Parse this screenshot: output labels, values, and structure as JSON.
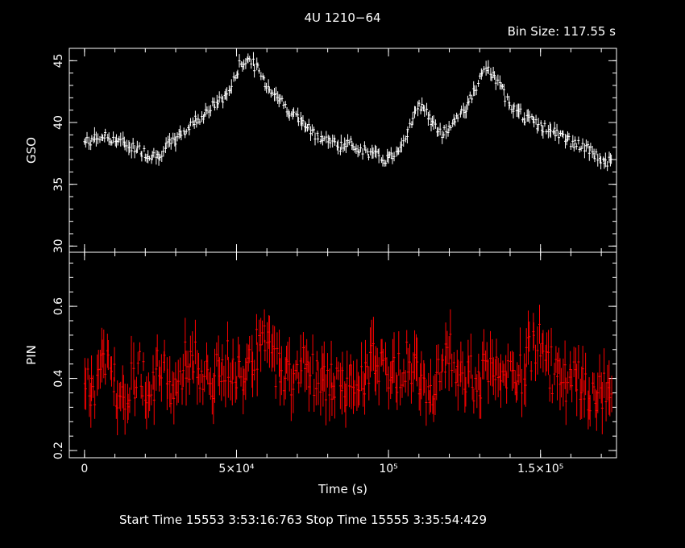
{
  "chart_data": {
    "type": "line",
    "title": "4U 1210−64",
    "subtitle": "Bin Size:  117.55  s",
    "xlabel": "Time (s)",
    "xlim": [
      -5000,
      175000
    ],
    "x_ticks": [
      {
        "value": 0,
        "label": "0"
      },
      {
        "value": 50000,
        "label": "5×10⁴"
      },
      {
        "value": 100000,
        "label": "10⁵"
      },
      {
        "value": 150000,
        "label": "1.5×10⁵"
      }
    ],
    "panels": [
      {
        "ylabel": "GSO",
        "ylim": [
          29.5,
          46
        ],
        "color": "#ffffff",
        "y_ticks": [
          {
            "value": 30,
            "label": "30"
          },
          {
            "value": 35,
            "label": "35"
          },
          {
            "value": 40,
            "label": "40"
          },
          {
            "value": 45,
            "label": "45"
          }
        ],
        "series": {
          "x": [
            0,
            3000,
            6000,
            9000,
            12000,
            15000,
            18000,
            21000,
            24000,
            27000,
            30000,
            33000,
            36000,
            39000,
            42000,
            45000,
            48000,
            51000,
            54000,
            57000,
            60000,
            63000,
            66000,
            69000,
            72000,
            75000,
            78000,
            81000,
            84000,
            87000,
            90000,
            93000,
            96000,
            99000,
            102000,
            105000,
            108000,
            111000,
            114000,
            117000,
            120000,
            123000,
            126000,
            129000,
            132000,
            135000,
            138000,
            141000,
            144000,
            147000,
            150000,
            153000,
            156000,
            159000,
            162000,
            165000,
            168000,
            171000
          ],
          "y": [
            38.4,
            38.6,
            38.9,
            38.7,
            38.4,
            38.1,
            37.8,
            37.4,
            37.3,
            38.0,
            38.6,
            39.3,
            40.1,
            40.6,
            41.3,
            41.8,
            42.7,
            44.6,
            45.2,
            44.3,
            43.0,
            42.3,
            41.3,
            40.6,
            39.9,
            39.2,
            38.8,
            38.5,
            38.1,
            38.3,
            38.0,
            37.6,
            37.3,
            37.0,
            37.4,
            38.6,
            40.4,
            41.6,
            40.1,
            39.1,
            39.6,
            40.6,
            41.4,
            42.9,
            44.4,
            43.6,
            42.3,
            41.3,
            40.6,
            40.1,
            39.7,
            39.4,
            39.0,
            38.6,
            38.2,
            37.9,
            37.4,
            36.8
          ]
        }
      },
      {
        "ylabel": "PIN",
        "ylim": [
          0.18,
          0.75
        ],
        "color": "#ff0000",
        "y_ticks": [
          {
            "value": 0.2,
            "label": "0.2"
          },
          {
            "value": 0.4,
            "label": "0.4"
          },
          {
            "value": 0.6,
            "label": "0.6"
          }
        ],
        "series": {
          "x": [
            0,
            3000,
            6000,
            9000,
            12000,
            15000,
            18000,
            21000,
            24000,
            27000,
            30000,
            33000,
            36000,
            39000,
            42000,
            45000,
            48000,
            51000,
            54000,
            57000,
            60000,
            63000,
            66000,
            69000,
            72000,
            75000,
            78000,
            81000,
            84000,
            87000,
            90000,
            93000,
            96000,
            99000,
            102000,
            105000,
            108000,
            111000,
            114000,
            117000,
            120000,
            123000,
            126000,
            129000,
            132000,
            135000,
            138000,
            141000,
            144000,
            147000,
            150000,
            153000,
            156000,
            159000,
            162000,
            165000,
            168000,
            171000
          ],
          "y": [
            0.38,
            0.36,
            0.45,
            0.41,
            0.36,
            0.38,
            0.43,
            0.36,
            0.42,
            0.4,
            0.37,
            0.44,
            0.46,
            0.4,
            0.38,
            0.43,
            0.45,
            0.41,
            0.46,
            0.48,
            0.49,
            0.44,
            0.42,
            0.4,
            0.45,
            0.42,
            0.38,
            0.4,
            0.36,
            0.39,
            0.42,
            0.41,
            0.46,
            0.44,
            0.4,
            0.45,
            0.43,
            0.41,
            0.38,
            0.4,
            0.47,
            0.44,
            0.42,
            0.39,
            0.41,
            0.43,
            0.4,
            0.38,
            0.42,
            0.47,
            0.51,
            0.43,
            0.4,
            0.37,
            0.39,
            0.36,
            0.34,
            0.37
          ]
        }
      }
    ]
  },
  "footer": {
    "text": "Start Time 15553   3:53:16:763     Stop Time 15555   3:35:54:429"
  }
}
